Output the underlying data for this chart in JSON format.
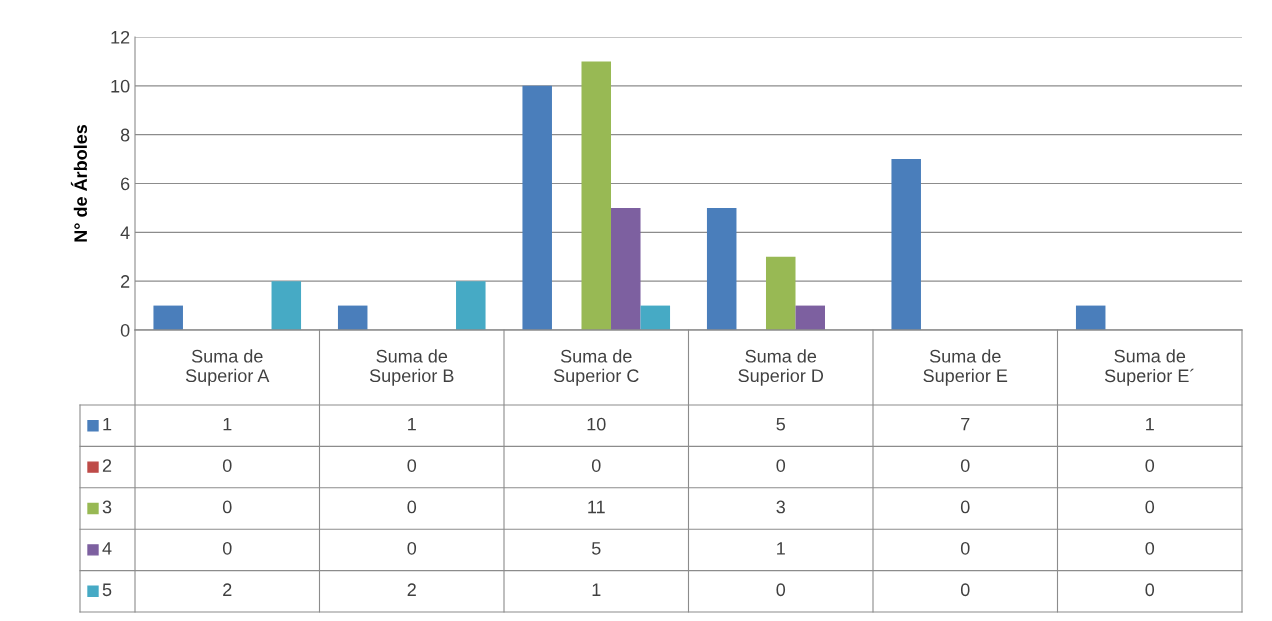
{
  "chart_data": {
    "type": "bar",
    "ylabel": "N° de Árboles",
    "categories": [
      "Suma de\nSuperior A",
      "Suma de\nSuperior B",
      "Suma de\nSuperior C",
      "Suma de\nSuperior D",
      "Suma de\nSuperior E",
      "Suma de\nSuperior E´"
    ],
    "series": [
      {
        "name": "1",
        "color": "#4a7ebb",
        "values": [
          1,
          1,
          10,
          5,
          7,
          1
        ]
      },
      {
        "name": "2",
        "color": "#be4b48",
        "values": [
          0,
          0,
          0,
          0,
          0,
          0
        ]
      },
      {
        "name": "3",
        "color": "#98b954",
        "values": [
          0,
          0,
          11,
          3,
          0,
          0
        ]
      },
      {
        "name": "4",
        "color": "#7d60a0",
        "values": [
          0,
          0,
          5,
          1,
          0,
          0
        ]
      },
      {
        "name": "5",
        "color": "#46aac5",
        "values": [
          2,
          2,
          1,
          0,
          0,
          0
        ]
      }
    ],
    "ylim": [
      0,
      12
    ],
    "yticks": [
      0,
      2,
      4,
      6,
      8,
      10,
      12
    ],
    "grid": "y",
    "legend": "left",
    "data_labels": true,
    "tick_labels": "y"
  }
}
